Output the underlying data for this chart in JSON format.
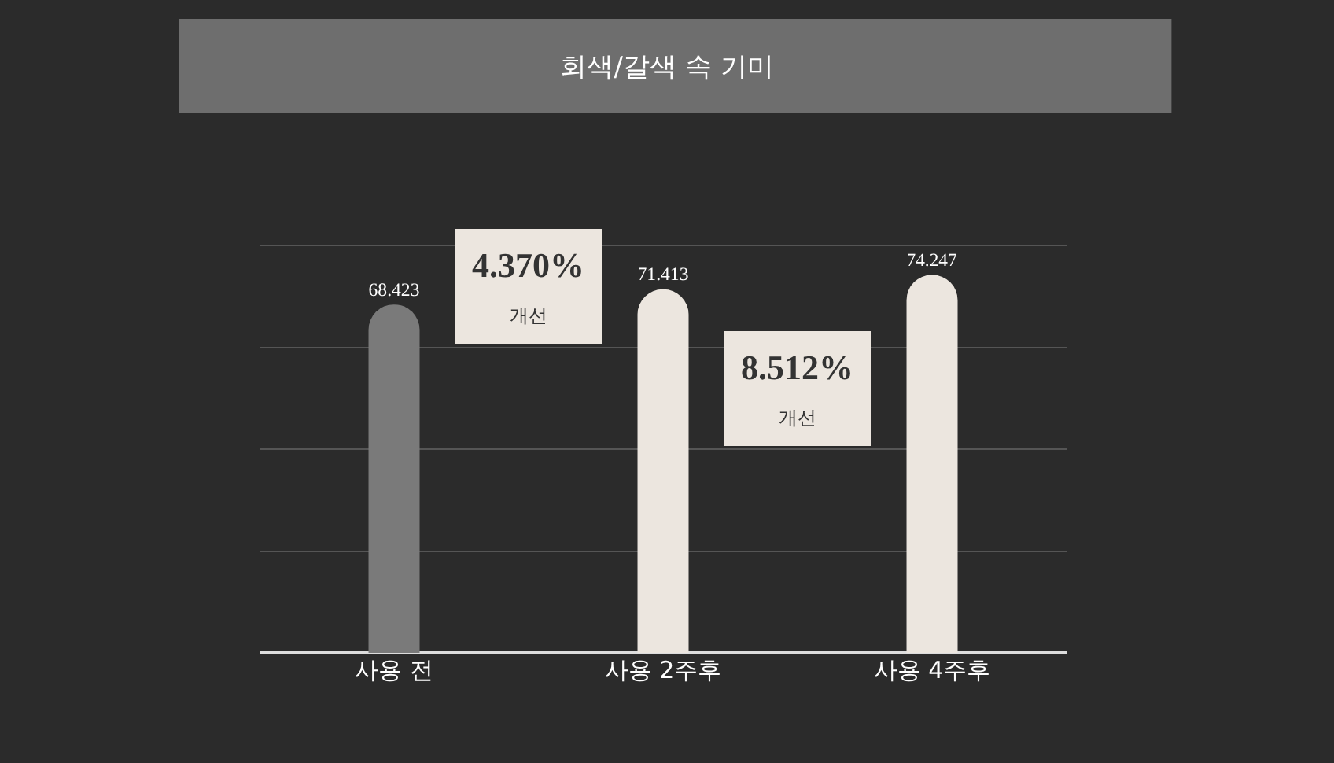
{
  "chart_data": {
    "type": "bar",
    "title": "회색/갈색 속 기미",
    "categories": [
      "사용 전",
      "사용 2주후",
      "사용 4주후"
    ],
    "values": [
      68.423,
      71.413,
      74.247
    ],
    "colors": [
      "#7a7a7a",
      "#ece6df",
      "#ece6df"
    ],
    "data_labels": true,
    "tick_labels": "x",
    "grid": "y",
    "annotations": [
      "4.370%\n개선",
      "8.512%\n개선"
    ]
  }
}
